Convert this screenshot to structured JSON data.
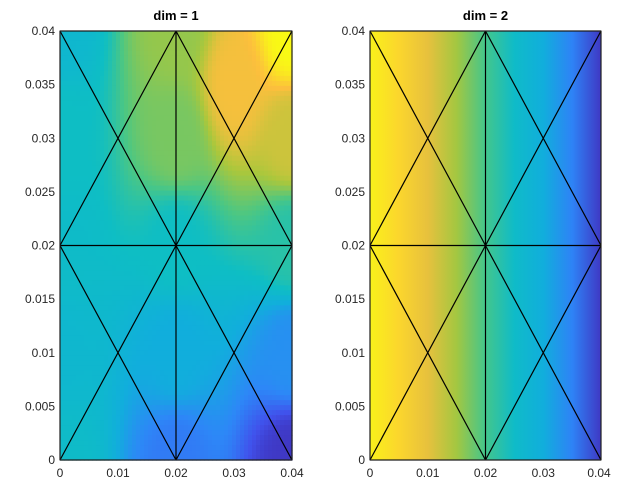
{
  "chart_data": [
    {
      "type": "heatmap",
      "title": "dim = 1",
      "xlim": [
        0,
        0.04
      ],
      "ylim": [
        0,
        0.04
      ],
      "xticks": [
        "0",
        "0.01",
        "0.02",
        "0.03",
        "0.04"
      ],
      "yticks": [
        "0",
        "0.005",
        "0.01",
        "0.015",
        "0.02",
        "0.025",
        "0.03",
        "0.035",
        "0.04"
      ],
      "grid": false,
      "colormap": "parula",
      "mesh_nodes": [
        [
          0,
          0
        ],
        [
          0.02,
          0
        ],
        [
          0.04,
          0
        ],
        [
          0,
          0.02
        ],
        [
          0.02,
          0.02
        ],
        [
          0.04,
          0.02
        ],
        [
          0,
          0.04
        ],
        [
          0.02,
          0.04
        ],
        [
          0.04,
          0.04
        ]
      ],
      "mesh_edges": [
        [
          0,
          2
        ],
        [
          3,
          5
        ],
        [
          6,
          8
        ],
        [
          0,
          6
        ],
        [
          1,
          7
        ],
        [
          2,
          8
        ],
        [
          0,
          4
        ],
        [
          4,
          8
        ],
        [
          2,
          4
        ],
        [
          4,
          6
        ],
        [
          3,
          1
        ],
        [
          1,
          5
        ],
        [
          3,
          7
        ],
        [
          7,
          5
        ]
      ],
      "field_samples": [
        {
          "x": 0.0,
          "y": 0.04,
          "v": 0.45
        },
        {
          "x": 0.02,
          "y": 0.04,
          "v": 0.72
        },
        {
          "x": 0.03,
          "y": 0.035,
          "v": 0.86
        },
        {
          "x": 0.04,
          "y": 0.04,
          "v": 1.0
        },
        {
          "x": 0.0,
          "y": 0.03,
          "v": 0.5
        },
        {
          "x": 0.02,
          "y": 0.03,
          "v": 0.68
        },
        {
          "x": 0.04,
          "y": 0.03,
          "v": 0.8
        },
        {
          "x": 0.0,
          "y": 0.02,
          "v": 0.48
        },
        {
          "x": 0.02,
          "y": 0.02,
          "v": 0.5
        },
        {
          "x": 0.04,
          "y": 0.02,
          "v": 0.55
        },
        {
          "x": 0.0,
          "y": 0.01,
          "v": 0.45
        },
        {
          "x": 0.02,
          "y": 0.01,
          "v": 0.38
        },
        {
          "x": 0.04,
          "y": 0.01,
          "v": 0.28
        },
        {
          "x": 0.0,
          "y": 0.0,
          "v": 0.48
        },
        {
          "x": 0.02,
          "y": 0.0,
          "v": 0.22
        },
        {
          "x": 0.04,
          "y": 0.0,
          "v": 0.05
        }
      ]
    },
    {
      "type": "heatmap",
      "title": "dim = 2",
      "xlim": [
        0,
        0.04
      ],
      "ylim": [
        0,
        0.04
      ],
      "xticks": [
        "0",
        "0.01",
        "0.02",
        "0.03",
        "0.04"
      ],
      "yticks": [
        "0",
        "0.005",
        "0.01",
        "0.015",
        "0.02",
        "0.025",
        "0.03",
        "0.035",
        "0.04"
      ],
      "grid": false,
      "colormap": "parula",
      "mesh_nodes": [
        [
          0,
          0
        ],
        [
          0.02,
          0
        ],
        [
          0.04,
          0
        ],
        [
          0,
          0.02
        ],
        [
          0.02,
          0.02
        ],
        [
          0.04,
          0.02
        ],
        [
          0,
          0.04
        ],
        [
          0.02,
          0.04
        ],
        [
          0.04,
          0.04
        ]
      ],
      "mesh_edges": [
        [
          0,
          2
        ],
        [
          3,
          5
        ],
        [
          6,
          8
        ],
        [
          0,
          6
        ],
        [
          1,
          7
        ],
        [
          2,
          8
        ],
        [
          0,
          4
        ],
        [
          4,
          8
        ],
        [
          2,
          4
        ],
        [
          4,
          6
        ],
        [
          3,
          1
        ],
        [
          1,
          5
        ],
        [
          3,
          7
        ],
        [
          7,
          5
        ]
      ],
      "field_samples": [
        {
          "x": 0.0,
          "y": 0.02,
          "v": 0.98
        },
        {
          "x": 0.005,
          "y": 0.02,
          "v": 0.92
        },
        {
          "x": 0.01,
          "y": 0.02,
          "v": 0.84
        },
        {
          "x": 0.015,
          "y": 0.02,
          "v": 0.74
        },
        {
          "x": 0.02,
          "y": 0.02,
          "v": 0.6
        },
        {
          "x": 0.025,
          "y": 0.02,
          "v": 0.48
        },
        {
          "x": 0.03,
          "y": 0.02,
          "v": 0.38
        },
        {
          "x": 0.035,
          "y": 0.02,
          "v": 0.24
        },
        {
          "x": 0.04,
          "y": 0.02,
          "v": 0.05
        }
      ]
    }
  ]
}
